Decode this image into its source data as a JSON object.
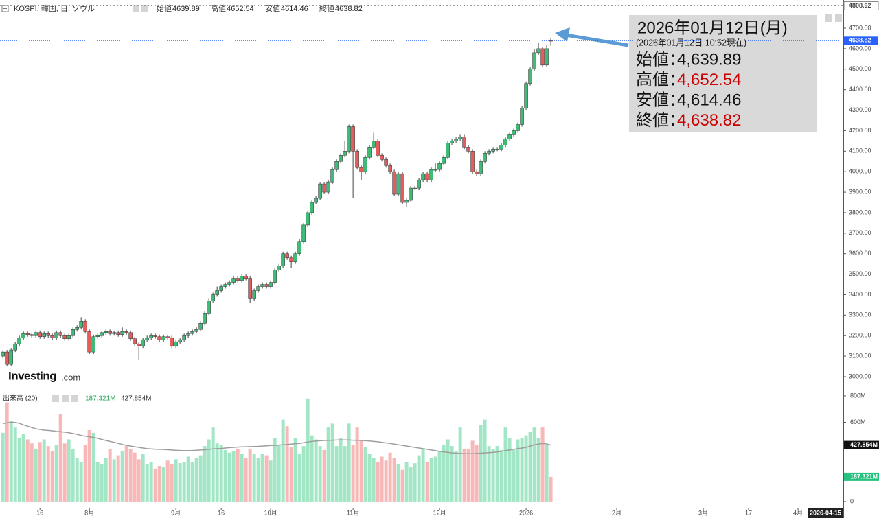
{
  "chart_data": {
    "type": "candlestick",
    "title": "KOSPI, 韓国, 日, ソウル",
    "ohlc_labels": [
      "始値",
      "高値",
      "安値",
      "終値"
    ],
    "ohlc_values": [
      4639.89,
      4652.54,
      4614.46,
      4638.82
    ],
    "up_color": "#3dbb77",
    "down_color": "#e35d5d",
    "xlim": [
      -0.7,
      204
    ],
    "xticks": [
      {
        "value": 9,
        "label": "16"
      },
      {
        "value": 21,
        "label": "8月"
      },
      {
        "value": 42,
        "label": "9月"
      },
      {
        "value": 53,
        "label": "16"
      },
      {
        "value": 65,
        "label": "10月"
      },
      {
        "value": 85,
        "label": "11月"
      },
      {
        "value": 106,
        "label": "12月"
      },
      {
        "value": 127,
        "label": "2026"
      },
      {
        "value": 149,
        "label": "2月"
      },
      {
        "value": 170,
        "label": "3月"
      },
      {
        "value": 181,
        "label": "17"
      },
      {
        "value": 193,
        "label": "4月"
      }
    ],
    "x_cursor": {
      "value": 200,
      "label": "2026-04-15"
    },
    "ylim": [
      2936.4,
      4837.3
    ],
    "yticks": [
      {
        "value": 3000,
        "label": "3000.00"
      },
      {
        "value": 3100,
        "label": "3100.00"
      },
      {
        "value": 3200,
        "label": "3200.00"
      },
      {
        "value": 3300,
        "label": "3300.00"
      },
      {
        "value": 3400,
        "label": "3400.00"
      },
      {
        "value": 3500,
        "label": "3500.00"
      },
      {
        "value": 3600,
        "label": "3600.00"
      },
      {
        "value": 3700,
        "label": "3700.00"
      },
      {
        "value": 3800,
        "label": "3800.00"
      },
      {
        "value": 3900,
        "label": "3900.00"
      },
      {
        "value": 4000,
        "label": "4000.00"
      },
      {
        "value": 4100,
        "label": "4100.00"
      },
      {
        "value": 4200,
        "label": "4200.00"
      },
      {
        "value": 4300,
        "label": "4300.00"
      },
      {
        "value": 4400,
        "label": "4400.00"
      },
      {
        "value": 4500,
        "label": "4500.00"
      },
      {
        "value": 4600,
        "label": "4600.00"
      },
      {
        "value": 4700,
        "label": "4700.00"
      }
    ],
    "range_high": 4808.92,
    "last_price": 4638.82,
    "open": [
      3100,
      3120,
      3060,
      3130,
      3160,
      3190,
      3210,
      3205,
      3200,
      3215,
      3195,
      3210,
      3200,
      3190,
      3215,
      3200,
      3185,
      3200,
      3230,
      3240,
      3270,
      3220,
      3120,
      3195,
      3200,
      3215,
      3220,
      3210,
      3215,
      3205,
      3220,
      3215,
      3185,
      3160,
      3150,
      3180,
      3190,
      3200,
      3195,
      3180,
      3195,
      3190,
      3150,
      3170,
      3180,
      3200,
      3210,
      3220,
      3230,
      3260,
      3310,
      3370,
      3400,
      3420,
      3440,
      3450,
      3460,
      3480,
      3470,
      3490,
      3480,
      3380,
      3420,
      3440,
      3450,
      3440,
      3460,
      3520,
      3540,
      3600,
      3580,
      3560,
      3600,
      3660,
      3740,
      3800,
      3850,
      3870,
      3940,
      3900,
      3950,
      4010,
      4050,
      4080,
      4100,
      4220,
      4100,
      4020,
      4000,
      4070,
      4120,
      4150,
      4080,
      4060,
      4030,
      4000,
      3890,
      3990,
      3850,
      3860,
      3920,
      3920,
      3960,
      3990,
      3960,
      4010,
      4010,
      4040,
      4070,
      4140,
      4150,
      4160,
      4170,
      4120,
      4100,
      4000,
      3990,
      4050,
      4090,
      4100,
      4110,
      4110,
      4130,
      4160,
      4180,
      4200,
      4230,
      4310,
      4430,
      4500,
      4580,
      4600,
      4520,
      4639.89
    ],
    "high": [
      3130,
      3130,
      3140,
      3170,
      3200,
      3220,
      3220,
      3215,
      3225,
      3225,
      3220,
      3220,
      3210,
      3225,
      3225,
      3210,
      3210,
      3240,
      3250,
      3290,
      3280,
      3230,
      3205,
      3210,
      3225,
      3230,
      3230,
      3225,
      3225,
      3240,
      3230,
      3225,
      3195,
      3170,
      3190,
      3200,
      3210,
      3210,
      3205,
      3205,
      3205,
      3200,
      3180,
      3190,
      3210,
      3220,
      3230,
      3240,
      3270,
      3320,
      3380,
      3410,
      3440,
      3450,
      3460,
      3470,
      3490,
      3490,
      3500,
      3500,
      3490,
      3430,
      3450,
      3460,
      3460,
      3470,
      3530,
      3550,
      3610,
      3610,
      3590,
      3610,
      3670,
      3750,
      3810,
      3860,
      3880,
      3950,
      3950,
      3960,
      4020,
      4060,
      4090,
      4150,
      4230,
      4230,
      4110,
      4030,
      4080,
      4130,
      4190,
      4160,
      4090,
      4070,
      4040,
      4010,
      4000,
      4000,
      3870,
      3930,
      3930,
      3970,
      4000,
      4000,
      4020,
      4040,
      4050,
      4080,
      4150,
      4160,
      4170,
      4180,
      4180,
      4130,
      4110,
      4010,
      4060,
      4100,
      4110,
      4120,
      4120,
      4140,
      4170,
      4190,
      4210,
      4240,
      4320,
      4440,
      4510,
      4600,
      4630,
      4610,
      4620,
      4652.54
    ],
    "low": [
      3090,
      3050,
      3050,
      3120,
      3150,
      3180,
      3195,
      3190,
      3190,
      3185,
      3185,
      3190,
      3180,
      3180,
      3190,
      3175,
      3175,
      3190,
      3220,
      3230,
      3210,
      3110,
      3110,
      3185,
      3190,
      3205,
      3200,
      3200,
      3195,
      3195,
      3205,
      3175,
      3150,
      3080,
      3140,
      3170,
      3180,
      3185,
      3170,
      3170,
      3180,
      3140,
      3140,
      3160,
      3170,
      3190,
      3200,
      3210,
      3220,
      3250,
      3300,
      3360,
      3390,
      3410,
      3430,
      3440,
      3450,
      3460,
      3460,
      3470,
      3360,
      3370,
      3410,
      3430,
      3430,
      3430,
      3450,
      3510,
      3530,
      3570,
      3530,
      3550,
      3590,
      3650,
      3730,
      3790,
      3840,
      3860,
      3890,
      3890,
      3940,
      4000,
      4040,
      4070,
      4090,
      3870,
      4010,
      3960,
      3990,
      4060,
      4110,
      4070,
      4050,
      4020,
      3990,
      3880,
      3880,
      3840,
      3830,
      3850,
      3910,
      3910,
      3950,
      3950,
      3950,
      4000,
      4000,
      4030,
      4060,
      4130,
      4140,
      4150,
      4110,
      4090,
      3990,
      3980,
      3980,
      4040,
      4080,
      4090,
      4100,
      4100,
      4120,
      4150,
      4170,
      4190,
      4220,
      4300,
      4420,
      4490,
      4570,
      4510,
      4510,
      4614.46
    ],
    "close": [
      3120,
      3060,
      3130,
      3160,
      3190,
      3210,
      3205,
      3200,
      3215,
      3195,
      3210,
      3200,
      3190,
      3215,
      3200,
      3185,
      3200,
      3230,
      3240,
      3270,
      3220,
      3120,
      3195,
      3200,
      3215,
      3220,
      3210,
      3215,
      3205,
      3220,
      3215,
      3185,
      3160,
      3150,
      3180,
      3190,
      3200,
      3195,
      3180,
      3195,
      3190,
      3150,
      3170,
      3180,
      3200,
      3210,
      3220,
      3230,
      3260,
      3310,
      3370,
      3400,
      3420,
      3440,
      3450,
      3460,
      3480,
      3470,
      3490,
      3480,
      3380,
      3420,
      3440,
      3450,
      3440,
      3460,
      3520,
      3540,
      3600,
      3580,
      3560,
      3600,
      3660,
      3740,
      3800,
      3850,
      3870,
      3940,
      3900,
      3950,
      4010,
      4050,
      4080,
      4100,
      4220,
      4100,
      4020,
      4000,
      4070,
      4120,
      4150,
      4080,
      4060,
      4030,
      4000,
      3890,
      3990,
      3850,
      3860,
      3920,
      3920,
      3960,
      3990,
      3960,
      4010,
      4010,
      4040,
      4070,
      4140,
      4150,
      4160,
      4170,
      4120,
      4100,
      4000,
      3990,
      4050,
      4090,
      4100,
      4110,
      4110,
      4130,
      4160,
      4180,
      4200,
      4230,
      4310,
      4430,
      4500,
      4580,
      4600,
      4520,
      4600,
      4638.82
    ],
    "annotation": {
      "date": "2026年01月12日(月)",
      "asof": "(2026年01月12日 10:52現在)",
      "labels": [
        "始値：",
        "高値：",
        "安値：",
        "終値："
      ],
      "values": [
        4639.89,
        4652.54,
        4614.46,
        4638.82
      ],
      "value_labels": [
        "4,639.89",
        "4,652.54",
        "4,614.46",
        "4,638.82"
      ],
      "value_colors": [
        "#111111",
        "#cc0000",
        "#111111",
        "#cc0000"
      ]
    },
    "brand": [
      "Investing",
      ".com"
    ],
    "volume": {
      "title": "出来高 (20)",
      "up_color": "#a3e6c6",
      "down_color": "#f8b8b8",
      "ma_color": "#9e9e9e",
      "ylim": [
        -47,
        836
      ],
      "yticks": [
        0,
        {
          "value": 600,
          "label": "600M"
        },
        {
          "value": 800,
          "label": "800M"
        }
      ],
      "values": [
        520,
        750,
        610,
        560,
        480,
        510,
        470,
        440,
        400,
        450,
        470,
        420,
        380,
        430,
        660,
        440,
        470,
        400,
        330,
        300,
        430,
        540,
        520,
        300,
        280,
        330,
        400,
        320,
        350,
        380,
        420,
        400,
        370,
        320,
        360,
        280,
        300,
        250,
        270,
        260,
        310,
        280,
        320,
        290,
        300,
        340,
        300,
        330,
        350,
        420,
        470,
        560,
        440,
        430,
        390,
        370,
        380,
        400,
        360,
        330,
        400,
        360,
        330,
        360,
        350,
        310,
        480,
        430,
        620,
        570,
        410,
        480,
        360,
        420,
        780,
        500,
        470,
        420,
        390,
        560,
        590,
        420,
        480,
        420,
        590,
        430,
        560,
        460,
        410,
        360,
        330,
        300,
        340,
        310,
        370,
        330,
        280,
        240,
        300,
        260,
        290,
        350,
        400,
        300,
        330,
        340,
        380,
        430,
        470,
        420,
        380,
        560,
        400,
        400,
        460,
        430,
        580,
        620,
        420,
        400,
        420,
        390,
        560,
        480,
        390,
        470,
        480,
        500,
        530,
        560,
        480,
        560,
        430,
        187.321
      ],
      "ma": [
        590,
        595,
        600,
        598,
        592,
        580,
        570,
        560,
        550,
        545,
        540,
        538,
        535,
        530,
        528,
        525,
        520,
        515,
        508,
        500,
        495,
        490,
        485,
        478,
        470,
        462,
        455,
        448,
        440,
        432,
        425,
        420,
        415,
        410,
        405,
        400,
        398,
        396,
        395,
        394,
        392,
        390,
        388,
        386,
        385,
        385,
        386,
        388,
        390,
        392,
        395,
        398,
        400,
        402,
        405,
        408,
        410,
        412,
        414,
        415,
        416,
        417,
        418,
        420,
        422,
        424,
        425,
        428,
        430,
        432,
        435,
        438,
        440,
        445,
        450,
        455,
        458,
        460,
        462,
        463,
        464,
        465,
        466,
        466,
        465,
        464,
        463,
        462,
        460,
        458,
        455,
        452,
        448,
        444,
        440,
        435,
        430,
        425,
        420,
        415,
        410,
        405,
        400,
        395,
        390,
        385,
        380,
        376,
        372,
        368,
        366,
        364,
        362,
        362,
        362,
        364,
        366,
        368,
        370,
        372,
        375,
        380,
        385,
        390,
        395,
        400,
        405,
        410,
        420,
        430,
        435,
        440,
        436,
        427.854
      ],
      "current": {
        "volume": 187.321,
        "volume_label": "187.321M",
        "ma": 427.854,
        "ma_label": "427.854M"
      }
    }
  }
}
